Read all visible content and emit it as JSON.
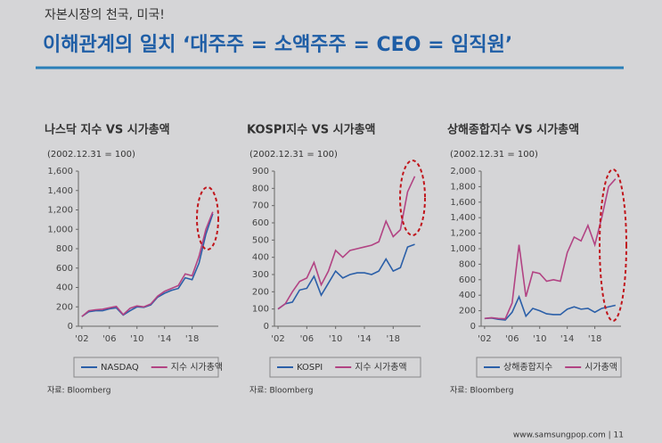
{
  "header": {
    "kicker": "자본시장의 천국, 미국!",
    "title": "이해관계의 일치 ‘대주주 = 소액주주 = CEO = 임직원’"
  },
  "footer": "www.samsungpop.com | 11",
  "chart_data": [
    {
      "type": "line",
      "title": "나스닥 지수 VS 시가총액",
      "subtitle": "(2002.12.31 = 100)",
      "source": "자료: Bloomberg",
      "x": [
        2002,
        2003,
        2004,
        2005,
        2006,
        2007,
        2008,
        2009,
        2010,
        2011,
        2012,
        2013,
        2014,
        2015,
        2016,
        2017,
        2018,
        2019,
        2020,
        2021
      ],
      "series": [
        {
          "name": "NASDAQ",
          "color": "#2b5fa8",
          "values": [
            100,
            150,
            160,
            160,
            180,
            190,
            115,
            160,
            200,
            195,
            220,
            300,
            340,
            370,
            390,
            500,
            480,
            650,
            950,
            1160
          ]
        },
        {
          "name": "지수 시가총액",
          "color": "#b24383",
          "values": [
            100,
            160,
            170,
            175,
            190,
            205,
            120,
            185,
            210,
            200,
            230,
            310,
            360,
            390,
            420,
            540,
            520,
            720,
            1000,
            1180
          ]
        }
      ],
      "xlim": [
        2001.5,
        2021.8
      ],
      "xticks": [
        {
          "value": 2002,
          "label": "'02"
        },
        {
          "value": 2006,
          "label": "'06"
        },
        {
          "value": 2010,
          "label": "'10"
        },
        {
          "value": 2014,
          "label": "'14"
        },
        {
          "value": 2018,
          "label": "'18"
        }
      ],
      "ylim": [
        0,
        1600
      ],
      "yticks": [
        0,
        200,
        400,
        600,
        800,
        {
          "value": 1000,
          "label": "1,000"
        },
        {
          "value": 1200,
          "label": "1,200"
        },
        {
          "value": 1400,
          "label": "1,400"
        },
        {
          "value": 1600,
          "label": "1,600"
        }
      ]
    },
    {
      "type": "line",
      "title": "KOSPI지수 VS 시가총액",
      "subtitle": "(2002.12.31 = 100)",
      "source": "자료: Bloomberg",
      "x": [
        2002,
        2003,
        2004,
        2005,
        2006,
        2007,
        2008,
        2009,
        2010,
        2011,
        2012,
        2013,
        2014,
        2015,
        2016,
        2017,
        2018,
        2019,
        2020,
        2021
      ],
      "series": [
        {
          "name": "KOSPI",
          "color": "#2b5fa8",
          "values": [
            100,
            130,
            140,
            210,
            220,
            290,
            180,
            250,
            320,
            280,
            300,
            310,
            310,
            300,
            320,
            390,
            320,
            340,
            460,
            475
          ]
        },
        {
          "name": "지수 시가총액",
          "color": "#b24383",
          "values": [
            100,
            130,
            200,
            260,
            280,
            370,
            240,
            320,
            440,
            400,
            440,
            450,
            460,
            470,
            490,
            610,
            520,
            560,
            780,
            870
          ]
        }
      ],
      "xlim": [
        2001.5,
        2021.8
      ],
      "xticks": [
        {
          "value": 2002,
          "label": "'02"
        },
        {
          "value": 2006,
          "label": "'06"
        },
        {
          "value": 2010,
          "label": "'10"
        },
        {
          "value": 2014,
          "label": "'14"
        },
        {
          "value": 2018,
          "label": "'18"
        }
      ],
      "ylim": [
        0,
        900
      ],
      "yticks": [
        0,
        100,
        200,
        300,
        400,
        500,
        600,
        700,
        800,
        900
      ]
    },
    {
      "type": "line",
      "title": "상해종합지수 VS 시가총액",
      "subtitle": "(2002.12.31 = 100)",
      "source": "자료: Bloomberg",
      "x": [
        2002,
        2003,
        2004,
        2005,
        2006,
        2007,
        2008,
        2009,
        2010,
        2011,
        2012,
        2013,
        2014,
        2015,
        2016,
        2017,
        2018,
        2019,
        2020,
        2021
      ],
      "series": [
        {
          "name": "상해종합지수",
          "color": "#2b5fa8",
          "values": [
            100,
            105,
            90,
            80,
            180,
            380,
            130,
            230,
            200,
            160,
            150,
            150,
            220,
            250,
            220,
            230,
            180,
            230,
            250,
            270
          ]
        },
        {
          "name": "시가총액",
          "color": "#b24383",
          "values": [
            100,
            110,
            100,
            95,
            300,
            1050,
            380,
            700,
            680,
            580,
            600,
            580,
            950,
            1150,
            1100,
            1300,
            1050,
            1400,
            1800,
            1900
          ]
        }
      ],
      "xlim": [
        2001.5,
        2021.8
      ],
      "xticks": [
        {
          "value": 2002,
          "label": "'02"
        },
        {
          "value": 2006,
          "label": "'06"
        },
        {
          "value": 2010,
          "label": "'10"
        },
        {
          "value": 2014,
          "label": "'14"
        },
        {
          "value": 2018,
          "label": "'18"
        }
      ],
      "ylim": [
        0,
        2000
      ],
      "yticks": [
        0,
        200,
        400,
        600,
        800,
        {
          "value": 1000,
          "label": "1,000"
        },
        {
          "value": 1200,
          "label": "1,200"
        },
        {
          "value": 1400,
          "label": "1,400"
        },
        {
          "value": 1600,
          "label": "1,600"
        },
        {
          "value": 1800,
          "label": "1,800"
        },
        {
          "value": 2000,
          "label": "2,000"
        }
      ]
    }
  ]
}
